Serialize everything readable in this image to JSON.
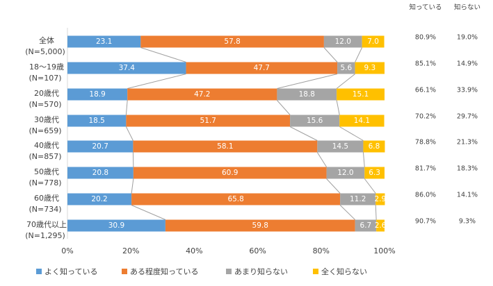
{
  "chart_data": {
    "type": "stacked-barh",
    "categories": [
      "全体",
      "18～19歳",
      "20歳代",
      "30歳代",
      "40歳代",
      "50歳代",
      "60歳代",
      "70歳代以上"
    ],
    "sample_sizes": [
      "(N=5,000)",
      "(N=107)",
      "(N=570)",
      "(N=659)",
      "(N=857)",
      "(N=778)",
      "(N=734)",
      "(N=1,295)"
    ],
    "series": [
      {
        "name": "よく知っている",
        "color": "#5b9bd5",
        "values": [
          23.1,
          37.4,
          18.9,
          18.5,
          20.7,
          20.8,
          20.2,
          30.9
        ],
        "value_labels": [
          "23.1",
          "37.4",
          "18.9",
          "18.5",
          "20.7",
          "20.8",
          "20.2",
          "30.9"
        ]
      },
      {
        "name": "ある程度知っている",
        "color": "#ed7d31",
        "values": [
          57.8,
          47.7,
          47.2,
          51.7,
          58.1,
          60.9,
          65.8,
          59.8
        ],
        "value_labels": [
          "57.8",
          "47.7",
          "47.2",
          "51.7",
          "58.1",
          "60.9",
          "65.8",
          "59.8"
        ]
      },
      {
        "name": "あまり知らない",
        "color": "#a5a5a5",
        "values": [
          12.0,
          5.6,
          18.8,
          15.6,
          14.5,
          12.0,
          11.2,
          6.7
        ],
        "value_labels": [
          "12.0",
          "5.6",
          "18.8",
          "15.6",
          "14.5",
          "12.0",
          "11.2",
          "6.7"
        ]
      },
      {
        "name": "全く知らない",
        "color": "#ffc000",
        "values": [
          7.0,
          9.3,
          15.1,
          14.1,
          6.8,
          6.3,
          2.9,
          2.6
        ],
        "value_labels": [
          "7.0",
          "9.3",
          "15.1",
          "14.1",
          "6.8",
          "6.3",
          "2.9",
          "2.6"
        ]
      }
    ],
    "totals": [
      {
        "name": "知っている",
        "values": [
          80.9,
          85.1,
          66.1,
          70.2,
          78.8,
          81.7,
          86.0,
          90.7
        ],
        "value_labels": [
          "80.9%",
          "85.1%",
          "66.1%",
          "70.2%",
          "78.8%",
          "81.7%",
          "86.0%",
          "90.7%"
        ]
      },
      {
        "name": "知らない",
        "values": [
          19.0,
          14.9,
          33.9,
          29.7,
          21.3,
          18.3,
          14.1,
          9.3
        ],
        "value_labels": [
          "19.0%",
          "14.9%",
          "33.9%",
          "29.7%",
          "21.3%",
          "18.3%",
          "14.1%",
          "9.3%"
        ]
      }
    ],
    "xlim": [
      0,
      100
    ],
    "xticks": [
      {
        "value": 0,
        "label": "0%"
      },
      {
        "value": 20,
        "label": "20%"
      },
      {
        "value": 40,
        "label": "40%"
      },
      {
        "value": 60,
        "label": "60%"
      },
      {
        "value": 80,
        "label": "80%"
      },
      {
        "value": 100,
        "label": "100%"
      }
    ],
    "legend": "bottom"
  }
}
